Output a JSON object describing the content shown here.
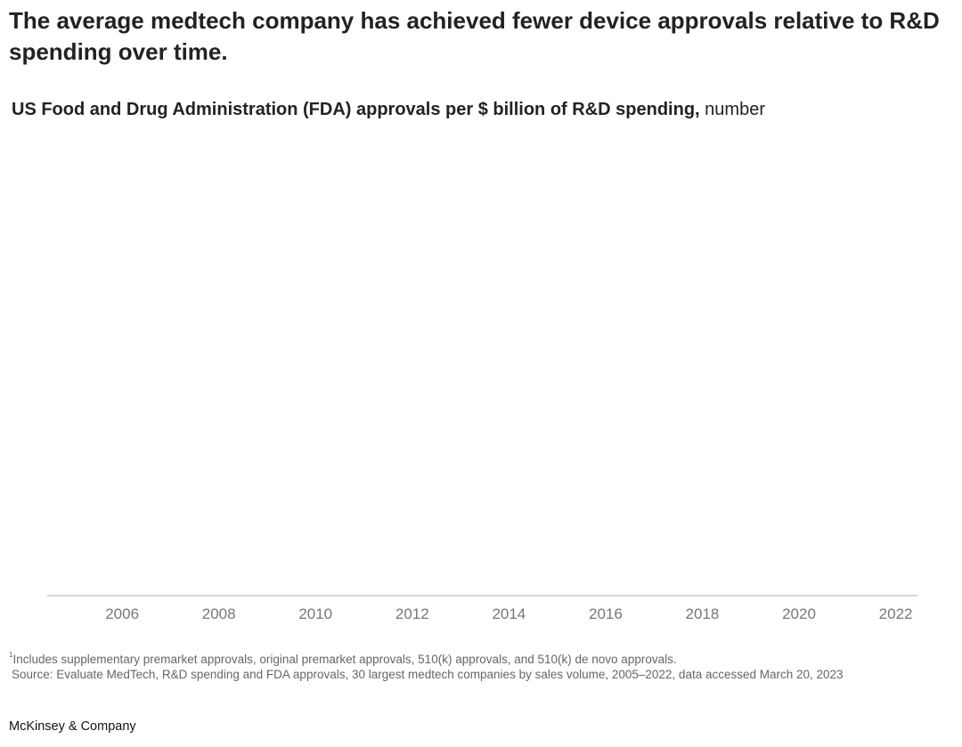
{
  "title": "The average medtech company has achieved fewer device approvals relative to R&D spending over time.",
  "chart_data": {
    "type": "line",
    "subtitle_bold": "US Food and Drug Administration (FDA) approvals per $ billion of R&D spending,",
    "subtitle_unit": " number",
    "xlabel": "",
    "ylabel": "",
    "x_ticks": [
      "2006",
      "2008",
      "2010",
      "2012",
      "2014",
      "2016",
      "2018",
      "2020",
      "2022"
    ],
    "xlim": [
      2004.45,
      2022.45
    ],
    "series": [],
    "grid": false,
    "axis_color": "#aaaaaa"
  },
  "footnote": {
    "marker": "1",
    "note": "Includes supplementary premarket approvals, original premarket approvals, 510(k) approvals, and 510(k) de novo approvals.",
    "source": "Source: Evaluate MedTech, R&D spending and FDA approvals, 30 largest medtech companies by sales volume, 2005–2022, data accessed March 20, 2023"
  },
  "brand": "McKinsey & Company"
}
